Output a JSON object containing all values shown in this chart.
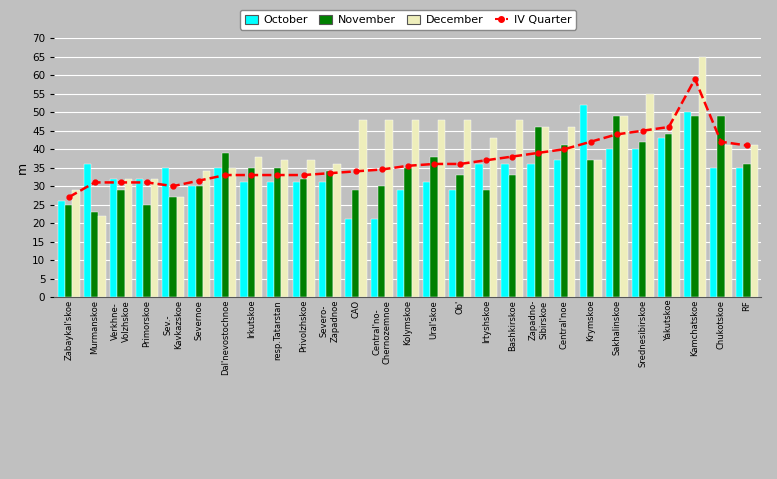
{
  "categories": [
    "Zabaykal'skoe",
    "Murmanskoe",
    "Verkhne-\nVolzhskoe",
    "Primorskoe",
    "Sev.-\nKavkazskoe",
    "Severnoe",
    "Dal'nevostochnoe",
    "Irkutskoe",
    "resp.Tatarstan",
    "Privolzhskoe",
    "Severo-\nZapadnoe",
    "CAO",
    "Central'no-\nChernozemnoe",
    "Kolymskoe",
    "Ural'skoe",
    "Ob'",
    "Irtyshskoe",
    "Bashkirskoe",
    "Zapadno-\nSibirskoe",
    "Central'noe",
    "Krymskoe",
    "Sakhalinskoe",
    "Srednesibirskoe",
    "Yakutskoe",
    "Kamchatskoe",
    "Chukotskoe",
    "RF"
  ],
  "october": [
    26,
    36,
    32,
    32,
    35,
    30,
    35,
    31,
    31,
    31,
    31,
    21,
    21,
    29,
    31,
    29,
    36,
    36,
    36,
    37,
    52,
    40,
    40,
    43,
    50,
    35,
    35
  ],
  "november": [
    25,
    23,
    29,
    25,
    27,
    30,
    39,
    35,
    35,
    32,
    34,
    29,
    30,
    35,
    38,
    33,
    29,
    33,
    46,
    41,
    37,
    49,
    42,
    44,
    49,
    49,
    36
  ],
  "december": [
    29,
    22,
    32,
    32,
    27,
    34,
    35,
    38,
    37,
    37,
    36,
    48,
    48,
    48,
    48,
    48,
    43,
    48,
    46,
    46,
    37,
    49,
    55,
    50,
    65,
    41,
    41
  ],
  "iv_quarter": [
    27,
    31,
    31,
    31,
    30,
    31.5,
    33,
    33,
    33,
    33,
    33.5,
    34,
    34.5,
    35.5,
    36,
    36,
    37,
    38,
    39,
    40,
    42,
    44,
    45,
    46,
    59,
    42,
    41
  ],
  "bar_color_oct": "#00FFFF",
  "bar_color_nov": "#008000",
  "bar_color_dec": "#EEEEBB",
  "line_color": "#FF0000",
  "bg_color": "#C0C0C0",
  "plot_bg_color": "#B8B8B8",
  "ylabel": "m",
  "ylim": [
    0,
    70
  ],
  "yticks": [
    0,
    5,
    10,
    15,
    20,
    25,
    30,
    35,
    40,
    45,
    50,
    55,
    60,
    65,
    70
  ]
}
